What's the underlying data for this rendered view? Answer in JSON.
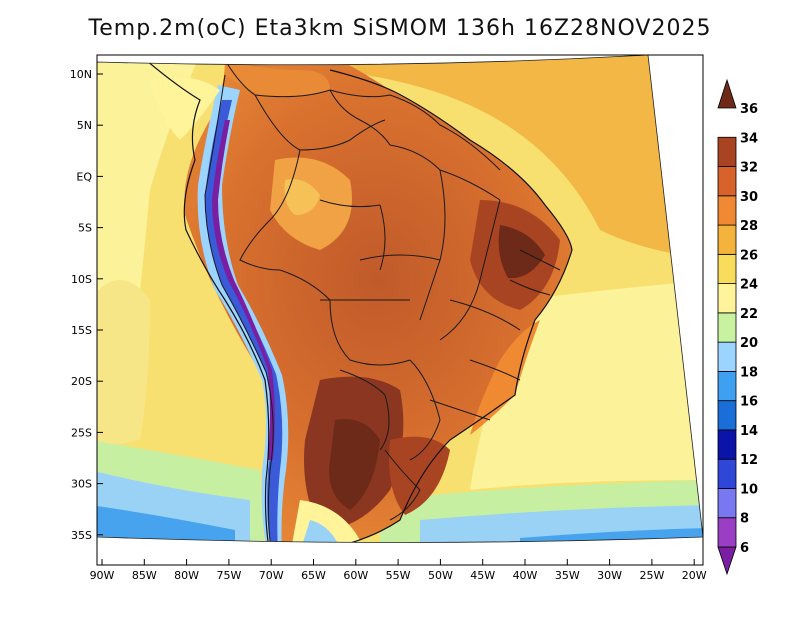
{
  "title": "Temp.2m(oC) Eta3km SiSMOM 136h 16Z28NOV2025",
  "map": {
    "variable": "Temperature at 2 m",
    "units": "oC",
    "lat_labels": [
      "10N",
      "5N",
      "EQ",
      "5S",
      "10S",
      "15S",
      "20S",
      "25S",
      "30S",
      "35S"
    ],
    "lon_labels": [
      "90W",
      "85W",
      "80W",
      "75W",
      "70W",
      "65W",
      "60W",
      "55W",
      "50W",
      "45W",
      "40W",
      "35W",
      "30W",
      "25W",
      "20W"
    ]
  },
  "colorbar": {
    "levels": [
      "6",
      "8",
      "10",
      "12",
      "14",
      "16",
      "18",
      "20",
      "22",
      "24",
      "26",
      "28",
      "30",
      "32",
      "34",
      "36"
    ],
    "colors": [
      "#7a1fa2",
      "#9a3ec4",
      "#7a78f0",
      "#2f47d8",
      "#0a14a8",
      "#1a6ed8",
      "#3ea0f0",
      "#9ad4ff",
      "#c8f2a0",
      "#fff49a",
      "#f8dc5a",
      "#f4b43c",
      "#ef8a32",
      "#d8632a",
      "#a84422",
      "#6e2a18"
    ]
  }
}
